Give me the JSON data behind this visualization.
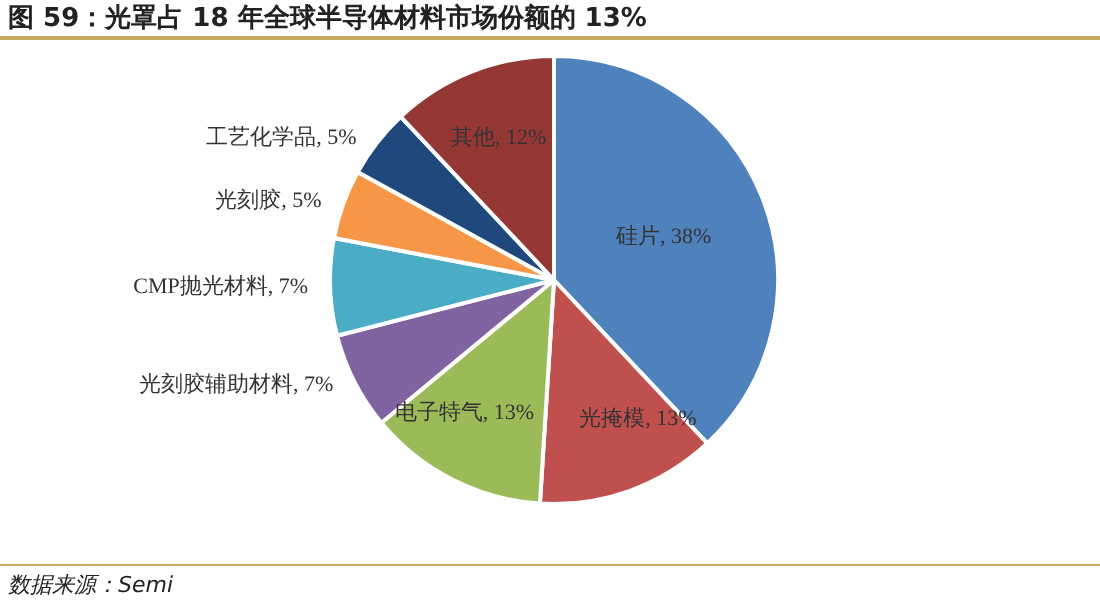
{
  "chart_data": {
    "type": "pie",
    "title": "图 59：光罩占 18 年全球半导体材料市场份额的 13%",
    "categories": [
      "硅片",
      "光掩模",
      "电子特气",
      "光刻胶辅助材料",
      "CMP抛光材料",
      "光刻胶",
      "工艺化学品",
      "其他"
    ],
    "values": [
      38,
      13,
      13,
      7,
      7,
      5,
      5,
      12
    ],
    "colors": [
      "#4f81bd",
      "#c0504d",
      "#9bbb59",
      "#8064a2",
      "#4bacc6",
      "#f79646",
      "#1f497d",
      "#953735"
    ],
    "value_labels": [
      "38%",
      "13%",
      "13%",
      "7%",
      "7%",
      "5%",
      "5%",
      "12%"
    ],
    "annotations": [
      "数据来源：Semi"
    ],
    "legend": false
  }
}
